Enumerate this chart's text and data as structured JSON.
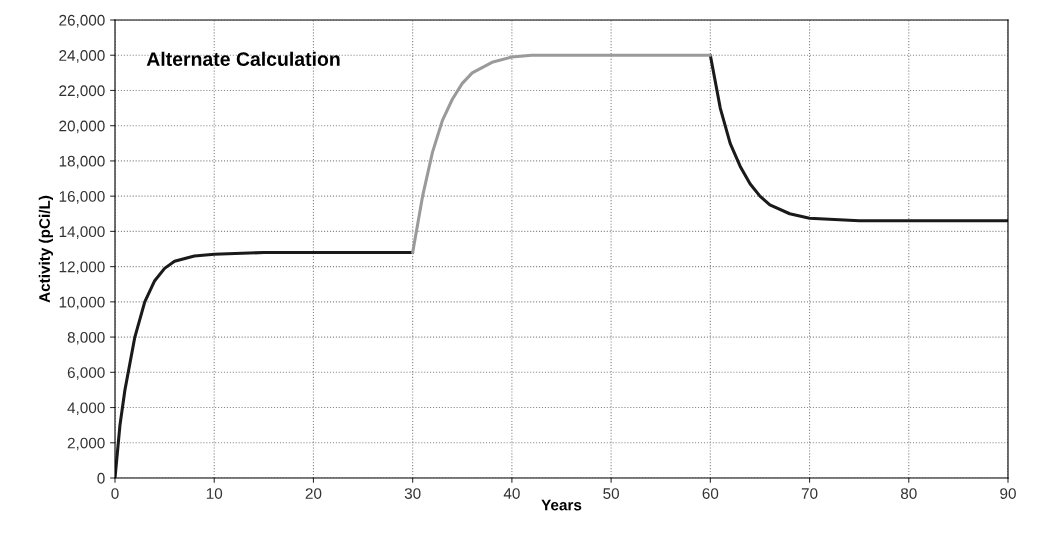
{
  "chart_data": {
    "type": "line",
    "title": "Alternate Calculation",
    "xlabel": "Years",
    "ylabel": "Activity (pCi/L)",
    "series": [
      {
        "color": "#1a1a1a",
        "x": [
          0,
          0.5,
          1,
          2,
          3,
          4,
          5,
          6,
          8,
          10,
          15,
          30
        ],
        "values": [
          0,
          3000,
          5000,
          8000,
          10000,
          11200,
          11900,
          12300,
          12600,
          12700,
          12800,
          12800
        ]
      },
      {
        "color": "#1a1a1a",
        "x": [
          60,
          61,
          62,
          63,
          64,
          65,
          66,
          68,
          70,
          75,
          90
        ],
        "values": [
          24000,
          21000,
          19000,
          17700,
          16700,
          16000,
          15500,
          15000,
          14750,
          14600,
          14600
        ]
      },
      {
        "color": "#9a9a9a",
        "x": [
          30,
          31,
          32,
          33,
          34,
          35,
          36,
          38,
          40,
          42,
          60
        ],
        "values": [
          12800,
          16000,
          18500,
          20300,
          21500,
          22400,
          23000,
          23600,
          23900,
          24000,
          24000
        ]
      }
    ],
    "xlim": [
      0,
      90
    ],
    "xticks": [
      0,
      10,
      20,
      30,
      40,
      50,
      60,
      70,
      80,
      90
    ],
    "ylim": [
      0,
      26000
    ],
    "yticks": [
      {
        "value": 0,
        "label": "0"
      },
      {
        "value": 2000,
        "label": "2,000"
      },
      {
        "value": 4000,
        "label": "4,000"
      },
      {
        "value": 6000,
        "label": "6,000"
      },
      {
        "value": 8000,
        "label": "8,000"
      },
      {
        "value": 10000,
        "label": "10,000"
      },
      {
        "value": 12000,
        "label": "12,000"
      },
      {
        "value": 14000,
        "label": "14,000"
      },
      {
        "value": 16000,
        "label": "16,000"
      },
      {
        "value": 18000,
        "label": "18,000"
      },
      {
        "value": 20000,
        "label": "20,000"
      },
      {
        "value": 22000,
        "label": "22,000"
      },
      {
        "value": 24000,
        "label": "24,000"
      },
      {
        "value": 26000,
        "label": "26,000"
      }
    ],
    "grid": true,
    "legend": false
  }
}
